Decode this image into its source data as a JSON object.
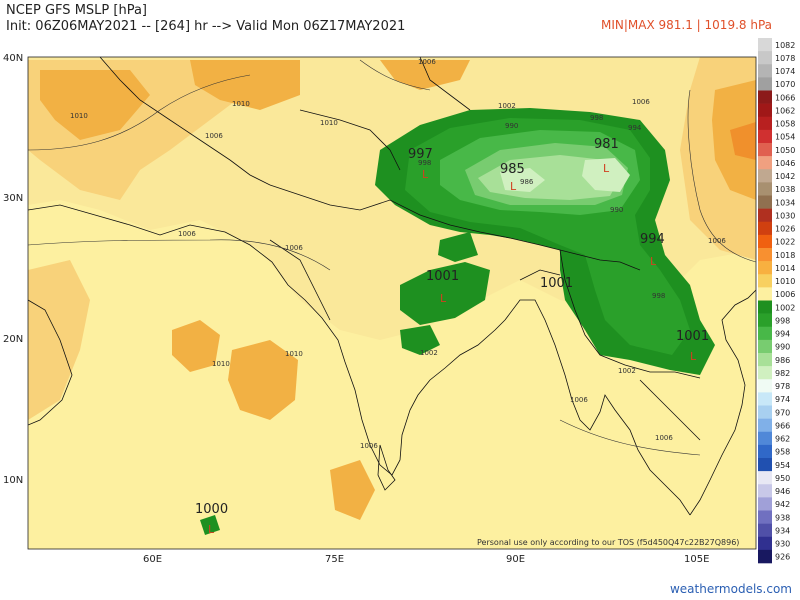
{
  "header": {
    "title": "NCEP GFS MSLP [hPa]",
    "init_line": "Init: 06Z06MAY2021 -- [264] hr --> Valid Mon 06Z17MAY2021",
    "minmax": "MIN|MAX 981.1 | 1019.8 hPa"
  },
  "axes": {
    "lat_labels": [
      "40N",
      "30N",
      "20N",
      "10N"
    ],
    "lon_labels": [
      "60E",
      "75E",
      "90E",
      "105E"
    ]
  },
  "labels": {
    "low_997": "997",
    "low_985": "985",
    "low_981": "981",
    "low_994": "994",
    "low_1001_india": "1001",
    "low_1001_bay": "1001",
    "low_1001_laos": "1001",
    "low_1000": "1000",
    "low_symbol": "L",
    "iso_1006_a": "1006",
    "iso_1006_b": "1006",
    "iso_1006_c": "1006",
    "iso_1006_d": "1006",
    "iso_1006_e": "1006",
    "iso_1006_f": "1006",
    "iso_1006_g": "1006",
    "iso_1006_h": "1006",
    "iso_1006_i": "1006",
    "iso_1010_a": "1010",
    "iso_1010_b": "1010",
    "iso_1010_c": "1010",
    "iso_1010_d": "1010",
    "iso_1010_e": "1010",
    "iso_1002_a": "1002",
    "iso_1002_b": "1002",
    "iso_1002_c": "1002",
    "iso_998_a": "998",
    "iso_998_b": "998",
    "iso_998_c": "998",
    "iso_994_a": "994",
    "iso_990_a": "990",
    "iso_990_b": "990",
    "iso_986_a": "986",
    "credit": "Personal use only according to our TOS (f5d450Q47c22B27Q896)"
  },
  "colorbar": {
    "levels": [
      "1082",
      "1078",
      "1074",
      "1070",
      "1066",
      "1062",
      "1058",
      "1054",
      "1050",
      "1046",
      "1042",
      "1038",
      "1034",
      "1030",
      "1026",
      "1022",
      "1018",
      "1014",
      "1010",
      "1006",
      "1002",
      "998",
      "994",
      "990",
      "986",
      "982",
      "978",
      "974",
      "970",
      "966",
      "962",
      "958",
      "954",
      "950",
      "946",
      "942",
      "938",
      "934",
      "930",
      "926"
    ],
    "colors": [
      "#d8d8d8",
      "#c8c8c8",
      "#b4b4b4",
      "#a0a0a0",
      "#8c1a1a",
      "#a01818",
      "#b82020",
      "#d03030",
      "#e06050",
      "#f0a080",
      "#c0a890",
      "#a89070",
      "#907050",
      "#b03020",
      "#d04010",
      "#f06010",
      "#f89030",
      "#f8b040",
      "#f8d060",
      "#fdf0a0",
      "#1e9020",
      "#2aa02a",
      "#48b848",
      "#78cc70",
      "#a8e098",
      "#d0f0c0",
      "#f0fbf4",
      "#c8e8f8",
      "#a8d0f0",
      "#80b0e8",
      "#5088d8",
      "#3068c8",
      "#2050b0",
      "#e8e8f4",
      "#c8c8e8",
      "#a0a0d8",
      "#7070c0",
      "#5050a8",
      "#303090",
      "#181860"
    ]
  },
  "footer": {
    "site": "weathermodels.com"
  },
  "colors": {
    "ocean": "#fdf0a0",
    "land_1006": "#fae89a",
    "high_1010": "#f8d27a",
    "high_1014": "#f2b144",
    "high_1018": "#f0902c",
    "green_998": "#1e9020",
    "green_994": "#2aa02a",
    "green_990": "#48b848",
    "green_986": "#78cc70",
    "green_982": "#a8e098",
    "green_978": "#d0f0c0"
  }
}
